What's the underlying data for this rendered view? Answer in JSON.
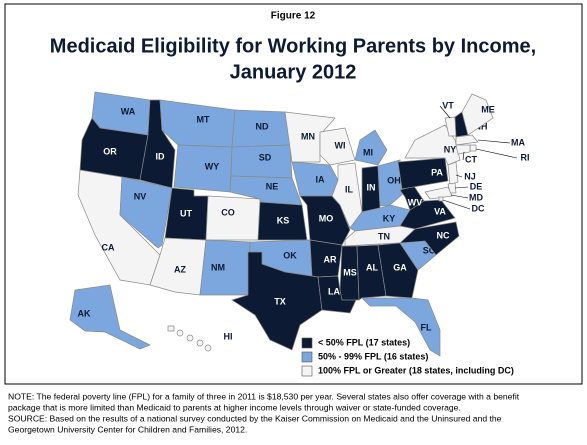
{
  "figure_label": "Figure 12",
  "title_lines": [
    "Medicaid Eligibility for Working Parents by Income,",
    "January 2012"
  ],
  "legend": [
    {
      "label": "< 50% FPL (17 states)",
      "color": "#0c1a33"
    },
    {
      "label": "50% - 99% FPL (16 states)",
      "color": "#7ba7de"
    },
    {
      "label": "100% FPL or Greater (18 states, including DC)",
      "color": "#f4f4f4"
    }
  ],
  "states": [
    {
      "label": "WA",
      "color": "#7ba7de"
    },
    {
      "label": "OR",
      "color": "#0c1a33"
    },
    {
      "label": "CA",
      "color": "#f4f4f4"
    },
    {
      "label": "ID",
      "color": "#0c1a33"
    },
    {
      "label": "NV",
      "color": "#7ba7de"
    },
    {
      "label": "MT",
      "color": "#7ba7de"
    },
    {
      "label": "WY",
      "color": "#7ba7de"
    },
    {
      "label": "UT",
      "color": "#0c1a33"
    },
    {
      "label": "CO",
      "color": "#f4f4f4"
    },
    {
      "label": "AZ",
      "color": "#f4f4f4"
    },
    {
      "label": "NM",
      "color": "#7ba7de"
    },
    {
      "label": "ND",
      "color": "#7ba7de"
    },
    {
      "label": "SD",
      "color": "#7ba7de"
    },
    {
      "label": "NE",
      "color": "#7ba7de"
    },
    {
      "label": "KS",
      "color": "#0c1a33"
    },
    {
      "label": "OK",
      "color": "#7ba7de"
    },
    {
      "label": "TX",
      "color": "#0c1a33"
    },
    {
      "label": "MN",
      "color": "#f4f4f4"
    },
    {
      "label": "IA",
      "color": "#7ba7de"
    },
    {
      "label": "MO",
      "color": "#0c1a33"
    },
    {
      "label": "AR",
      "color": "#0c1a33"
    },
    {
      "label": "LA",
      "color": "#0c1a33"
    },
    {
      "label": "WI",
      "color": "#f4f4f4"
    },
    {
      "label": "IL",
      "color": "#f4f4f4"
    },
    {
      "label": "MI",
      "color": "#7ba7de"
    },
    {
      "label": "IN",
      "color": "#0c1a33"
    },
    {
      "label": "OH",
      "color": "#7ba7de"
    },
    {
      "label": "KY",
      "color": "#7ba7de"
    },
    {
      "label": "TN",
      "color": "#f4f4f4"
    },
    {
      "label": "MS",
      "color": "#0c1a33"
    },
    {
      "label": "AL",
      "color": "#0c1a33"
    },
    {
      "label": "GA",
      "color": "#0c1a33"
    },
    {
      "label": "FL",
      "color": "#7ba7de"
    },
    {
      "label": "SC",
      "color": "#7ba7de"
    },
    {
      "label": "NC",
      "color": "#0c1a33"
    },
    {
      "label": "VA",
      "color": "#0c1a33"
    },
    {
      "label": "WV",
      "color": "#0c1a33"
    },
    {
      "label": "PA",
      "color": "#0c1a33"
    },
    {
      "label": "NY",
      "color": "#f4f4f4"
    },
    {
      "label": "VT",
      "color": "#f4f4f4"
    },
    {
      "label": "NH",
      "color": "#0c1a33"
    },
    {
      "label": "ME",
      "color": "#f4f4f4"
    },
    {
      "label": "MA",
      "color": "#f4f4f4"
    },
    {
      "label": "RI",
      "color": "#f4f4f4"
    },
    {
      "label": "CT",
      "color": "#f4f4f4"
    },
    {
      "label": "NJ",
      "color": "#f4f4f4"
    },
    {
      "label": "DE",
      "color": "#f4f4f4"
    },
    {
      "label": "MD",
      "color": "#f4f4f4"
    },
    {
      "label": "DC",
      "color": "#f4f4f4"
    },
    {
      "label": "AK",
      "color": "#7ba7de"
    },
    {
      "label": "HI",
      "color": "#f4f4f4"
    }
  ],
  "notes": [
    "NOTE: The federal poverty line (FPL) for a family of three in 2011 is $18,530 per year. Several states also offer coverage with a benefit",
    "package that is more limited than Medicaid to parents at higher income levels through waiver or state-funded coverage.",
    "SOURCE: Based on the results of a national survey conducted by the Kaiser Commission on Medicaid and the Uninsured and the",
    "Georgetown University Center for Children and Families, 2012."
  ]
}
